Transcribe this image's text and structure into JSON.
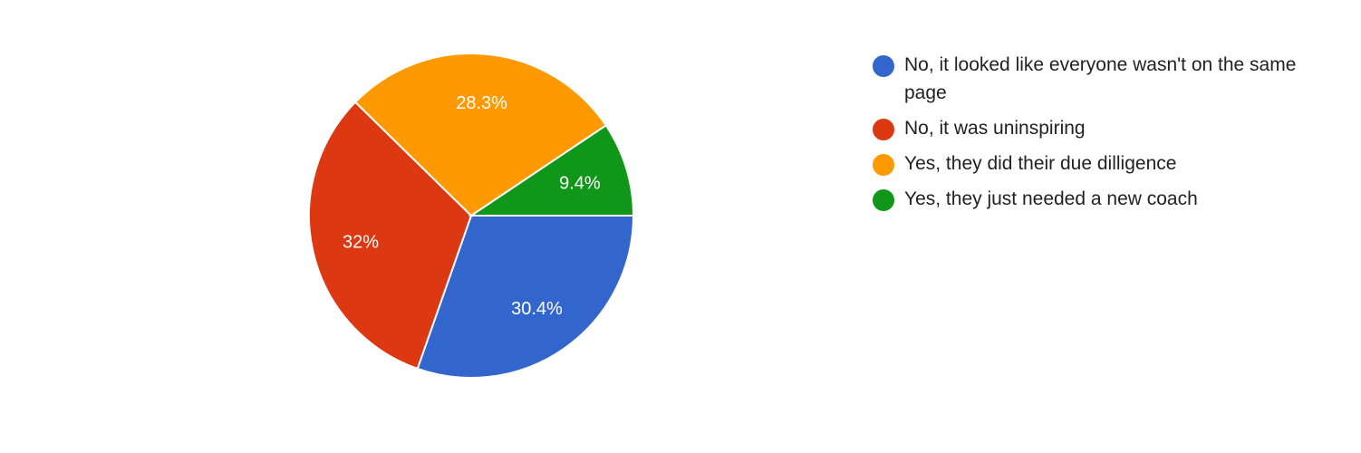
{
  "chart_data": {
    "type": "pie",
    "start": "3 o'clock, clockwise",
    "slices": [
      {
        "label": "No, it looked like everyone wasn't on the same page",
        "value": 30.4,
        "display": "30.4%",
        "color": "#3366cc"
      },
      {
        "label": "No, it was uninspiring",
        "value": 32.0,
        "display": "32%",
        "color": "#dc3912"
      },
      {
        "label": "Yes, they did their due dilligence",
        "value": 28.3,
        "display": "28.3%",
        "color": "#ff9900"
      },
      {
        "label": "Yes, they just needed a new coach",
        "value": 9.4,
        "display": "9.4%",
        "color": "#109618"
      }
    ],
    "legend_position": "right"
  }
}
